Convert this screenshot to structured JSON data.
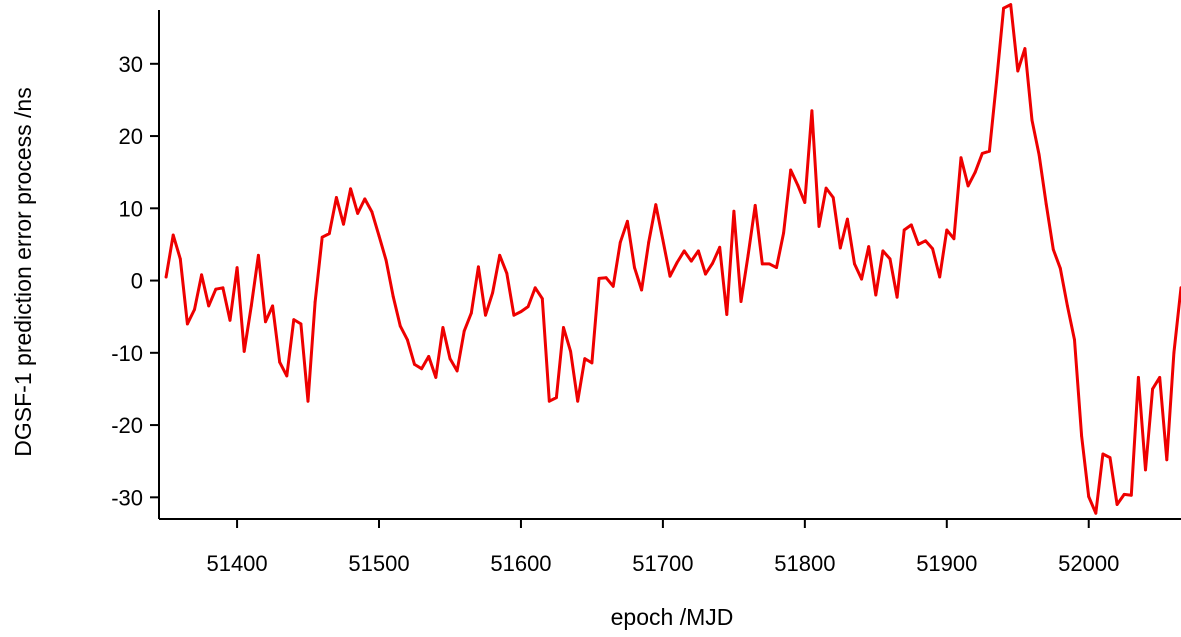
{
  "chart_data": {
    "type": "line",
    "title": "",
    "xlabel": "epoch /MJD",
    "ylabel": "DGSF-1 prediction error process /ns",
    "xlim": [
      51345,
      52065
    ],
    "ylim": [
      -33,
      38
    ],
    "xticks": [
      51400,
      51500,
      51600,
      51700,
      51800,
      51900,
      52000
    ],
    "yticks": [
      -30,
      -20,
      -10,
      0,
      10,
      20,
      30
    ],
    "xtick_labels": [
      "51400",
      "51500",
      "51600",
      "51700",
      "51800",
      "51900",
      "52000"
    ],
    "ytick_labels": [
      "-30",
      "-20",
      "-10",
      "0",
      "10",
      "20",
      "30"
    ],
    "grid": false,
    "legend": "none",
    "line_color": "#ee0000",
    "series": [
      {
        "x": [
          51350,
          51355,
          51360,
          51365,
          51370,
          51375,
          51380,
          51385,
          51390,
          51395,
          51400,
          51405,
          51410,
          51415,
          51420,
          51425,
          51430,
          51435,
          51440,
          51445,
          51450,
          51455,
          51460,
          51465,
          51470,
          51475,
          51480,
          51485,
          51490,
          51495,
          51500,
          51505,
          51510,
          51515,
          51520,
          51525,
          51530,
          51535,
          51540,
          51545,
          51550,
          51555,
          51560,
          51565,
          51570,
          51575,
          51580,
          51585,
          51590,
          51595,
          51600,
          51605,
          51610,
          51615,
          51620,
          51625,
          51630,
          51635,
          51640,
          51645,
          51650,
          51655,
          51660,
          51665,
          51670,
          51675,
          51680,
          51685,
          51690,
          51695,
          51700,
          51705,
          51710,
          51715,
          51720,
          51725,
          51730,
          51735,
          51740,
          51745,
          51750,
          51755,
          51760,
          51765,
          51770,
          51775,
          51780,
          51785,
          51790,
          51795,
          51800,
          51805,
          51810,
          51815,
          51820,
          51825,
          51830,
          51835,
          51840,
          51845,
          51850,
          51855,
          51860,
          51865,
          51870,
          51875,
          51880,
          51885,
          51890,
          51895,
          51900,
          51905,
          51910,
          51915,
          51920,
          51925,
          51930,
          51935,
          51940,
          51945,
          51950,
          51955,
          51960,
          51965,
          51970,
          51975,
          51980,
          51985,
          51990,
          51995,
          52000,
          52005,
          52010,
          52015,
          52020,
          52025,
          52030,
          52035,
          52040,
          52045,
          52050,
          52055,
          52060,
          52065
        ],
        "values": [
          0.5,
          6.3,
          3.0,
          -6.0,
          -4.0,
          0.8,
          -3.5,
          -1.2,
          -1.0,
          -5.5,
          1.8,
          -9.8,
          -3.5,
          3.5,
          -5.7,
          -3.5,
          -11.3,
          -13.2,
          -5.4,
          -6.0,
          -16.7,
          -3.0,
          6.0,
          6.5,
          11.5,
          7.8,
          12.7,
          9.3,
          11.3,
          9.5,
          6.2,
          2.8,
          -2.2,
          -6.3,
          -8.2,
          -11.6,
          -12.2,
          -10.5,
          -13.4,
          -6.5,
          -10.8,
          -12.5,
          -7.0,
          -4.5,
          1.9,
          -4.8,
          -1.7,
          3.5,
          1.0,
          -4.8,
          -4.3,
          -3.6,
          -1.0,
          -2.5,
          -16.7,
          -16.2,
          -6.5,
          -9.8,
          -16.7,
          -10.8,
          -11.4,
          0.3,
          0.4,
          -0.8,
          5.3,
          8.2,
          1.8,
          -1.3,
          5.3,
          10.5,
          5.6,
          0.6,
          2.5,
          4.1,
          2.7,
          4.1,
          0.9,
          2.4,
          4.6,
          -4.7,
          9.6,
          -2.9,
          3.5,
          10.4,
          2.3,
          2.3,
          1.8,
          6.6,
          15.3,
          13.2,
          10.8,
          23.5,
          7.5,
          12.8,
          11.5,
          4.5,
          8.5,
          2.3,
          0.2,
          4.7,
          -2.0,
          4.1,
          3.0,
          -2.3,
          7.0,
          7.7,
          5.0,
          5.5,
          4.4,
          0.5,
          7.0,
          5.8,
          17.0,
          13.1,
          15.0,
          17.6,
          17.9,
          27.5,
          37.7,
          38.2,
          29.0,
          32.1,
          22.2,
          17.4,
          10.6,
          4.3,
          1.7,
          -3.5,
          -8.2,
          -21.5,
          -29.9,
          -32.2,
          -24.0,
          -24.5,
          -31.0,
          -29.6,
          -29.7,
          -13.4,
          -26.2,
          -15.0,
          -13.4,
          -24.8,
          -10.0,
          -1.0
        ]
      }
    ]
  }
}
